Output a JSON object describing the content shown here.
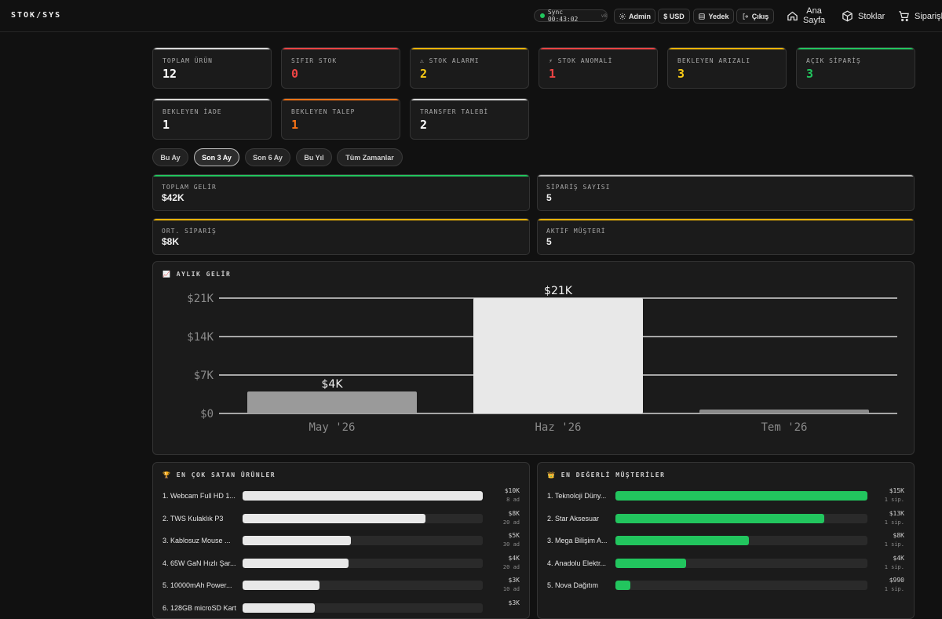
{
  "header": {
    "logo": "STOK/SYS",
    "sync_label": "Sync 00:43:02",
    "sync_version": "v8",
    "buttons": {
      "admin": "Admin",
      "currency": "$ USD",
      "backup": "Yedek",
      "logout": "Çıkış"
    },
    "nav": {
      "home_line1": "Ana",
      "home_line2": "Sayfa",
      "stocks": "Stoklar",
      "orders": "Siparişler"
    }
  },
  "stats": [
    {
      "label": "TOPLAM ÜRÜN",
      "value": "12",
      "accent": "#d9d9d9",
      "value_color": "#ffffff"
    },
    {
      "label": "SIFIR STOK",
      "value": "0",
      "accent": "#ef4444",
      "value_color": "#ef4444"
    },
    {
      "label": "⚠ STOK ALARMI",
      "value": "2",
      "accent": "#eab308",
      "value_color": "#facc15"
    },
    {
      "label": "⚡ STOK ANOMALİ",
      "value": "1",
      "accent": "#ef4444",
      "value_color": "#ef4444"
    },
    {
      "label": "BEKLEYEN ARIZALI",
      "value": "3",
      "accent": "#eab308",
      "value_color": "#facc15"
    },
    {
      "label": "AÇIK SİPARİŞ",
      "value": "3",
      "accent": "#22c55e",
      "value_color": "#22c55e"
    },
    {
      "label": "BEKLEYEN İADE",
      "value": "1",
      "accent": "#d9d9d9",
      "value_color": "#ffffff"
    },
    {
      "label": "BEKLEYEN TALEP",
      "value": "1",
      "accent": "#f97316",
      "value_color": "#f97316"
    },
    {
      "label": "TRANSFER TALEBİ",
      "value": "2",
      "accent": "#d9d9d9",
      "value_color": "#ffffff"
    }
  ],
  "periods": [
    "Bu Ay",
    "Son 3 Ay",
    "Son 6 Ay",
    "Bu Yıl",
    "Tüm Zamanlar"
  ],
  "active_period": "Son 3 Ay",
  "kpis": [
    {
      "label": "TOPLAM GELİR",
      "value": "$42K",
      "accent": "#22c55e"
    },
    {
      "label": "SİPARİŞ SAYISI",
      "value": "5",
      "accent": "#bdbdbd"
    },
    {
      "label": "ORT. SİPARİŞ",
      "value": "$8K",
      "accent": "#eab308"
    },
    {
      "label": "AKTİF MÜŞTERİ",
      "value": "5",
      "accent": "#eab308"
    }
  ],
  "chart_panel": {
    "title": "📈 AYLIK GELİR"
  },
  "chart_data": {
    "type": "bar",
    "title": "📈 AYLIK GELİR",
    "categories": [
      "May '26",
      "Haz '26",
      "Tem '26"
    ],
    "values": [
      4000,
      21000,
      500
    ],
    "data_labels": [
      "$4K",
      "$21K",
      ""
    ],
    "bar_colors": [
      "#9a9a9a",
      "#e8e8e8",
      "#8a8a8a"
    ],
    "yticks": [
      "$0",
      "$7K",
      "$14K",
      "$21K"
    ],
    "ytick_values": [
      0,
      7000,
      14000,
      21000
    ],
    "ylim": [
      0,
      21000
    ],
    "grid": true
  },
  "top_products": {
    "title": "🏆 EN ÇOK SATAN ÜRÜNLER",
    "items": [
      {
        "name": "1. Webcam Full HD 1...",
        "amount": "$10K",
        "sub": "8 ad",
        "fraction": 1.0
      },
      {
        "name": "2. TWS Kulaklık P3",
        "amount": "$8K",
        "sub": "20 ad",
        "fraction": 0.76
      },
      {
        "name": "3. Kablosuz Mouse ...",
        "amount": "$5K",
        "sub": "30 ad",
        "fraction": 0.45
      },
      {
        "name": "4. 65W GaN Hızlı Şar...",
        "amount": "$4K",
        "sub": "20 ad",
        "fraction": 0.44
      },
      {
        "name": "5. 10000mAh Power...",
        "amount": "$3K",
        "sub": "10 ad",
        "fraction": 0.32
      },
      {
        "name": "6. 128GB microSD Kart",
        "amount": "$3K",
        "sub": "",
        "fraction": 0.3
      }
    ]
  },
  "top_customers": {
    "title": "👑 EN DEĞERLİ MÜŞTERİLER",
    "items": [
      {
        "name": "1. Teknoloji Düny...",
        "amount": "$15K",
        "sub": "1 sip.",
        "fraction": 1.0
      },
      {
        "name": "2. Star Aksesuar",
        "amount": "$13K",
        "sub": "1 sip.",
        "fraction": 0.83
      },
      {
        "name": "3. Mega Bilişim A...",
        "amount": "$8K",
        "sub": "1 sip.",
        "fraction": 0.53
      },
      {
        "name": "4. Anadolu Elektr...",
        "amount": "$4K",
        "sub": "1 sip.",
        "fraction": 0.28
      },
      {
        "name": "5. Nova Dağıtım",
        "amount": "$990",
        "sub": "1 sip.",
        "fraction": 0.06
      }
    ]
  }
}
